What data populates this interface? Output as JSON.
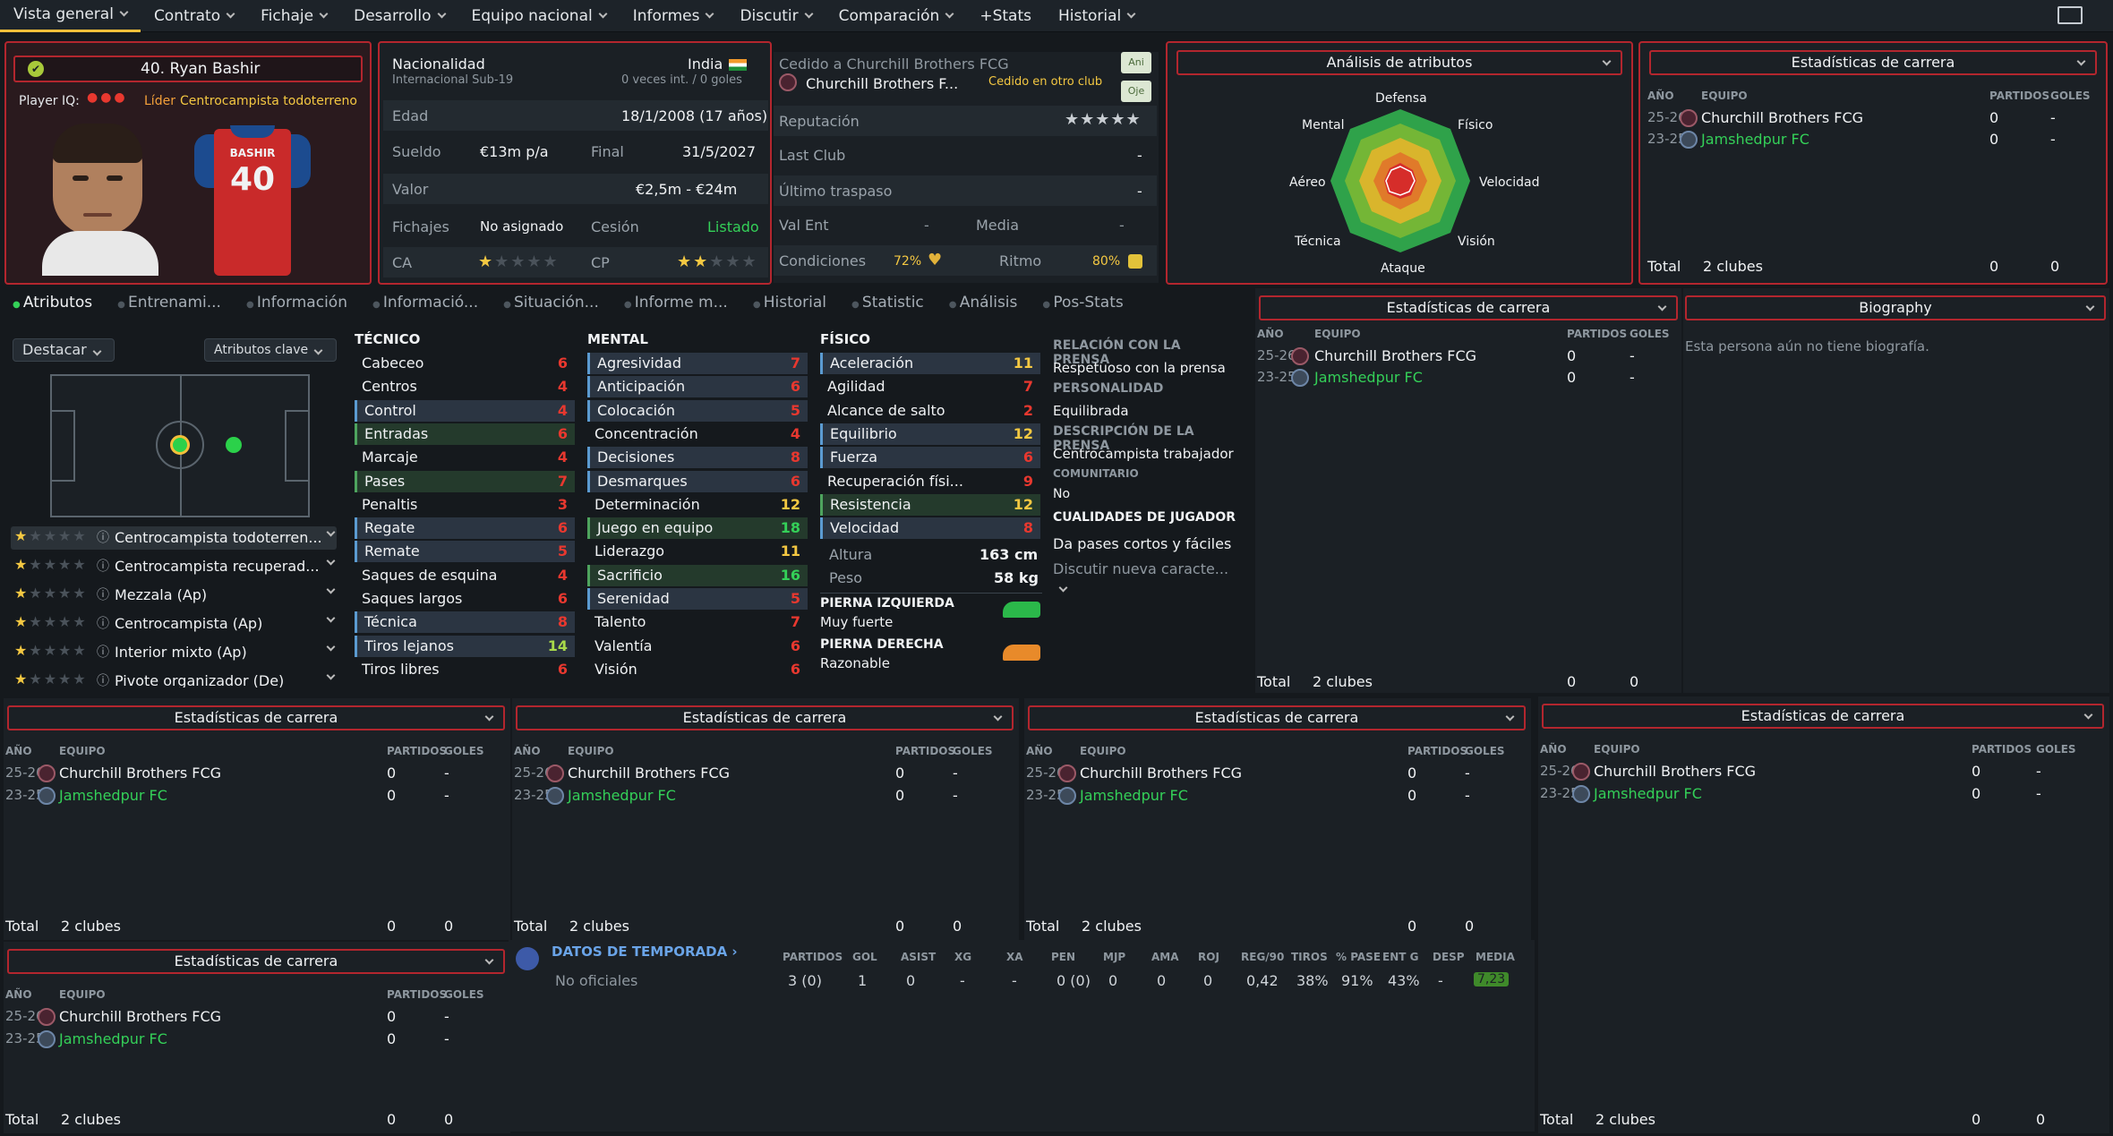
{
  "nav": [
    "Vista general",
    "Contrato",
    "Fichaje",
    "Desarrollo",
    "Equipo nacional",
    "Informes",
    "Discutir",
    "Comparación",
    "+Stats",
    "Historial"
  ],
  "player": {
    "name": "40. Ryan Bashir",
    "player_iq_label": "Player IQ:",
    "leader": "Líder",
    "role": "Centrocampista todoterreno",
    "shirt_name": "BASHIR",
    "shirt_number": "40"
  },
  "info": {
    "nationality_label": "Nacionalidad",
    "nationality": "India",
    "intl_label": "Internacional Sub-19",
    "intl_value": "0 veces int. / 0 goles",
    "age_label": "Edad",
    "age": "18/1/2008 (17 años)",
    "salary_label": "Sueldo",
    "salary": "€13m p/a",
    "end_label": "Final",
    "end": "31/5/2027",
    "value_label": "Valor",
    "value": "€2,5m - €24m",
    "transfers_label": "Fichajes",
    "transfers": "No asignado",
    "loan_label": "Cesión",
    "loan": "Listado",
    "ca_label": "CA",
    "cp_label": "CP",
    "loaned_to": "Cedido a Churchill Brothers FCG",
    "club": "Churchill Brothers F...",
    "loaned_status": "Cedido en otro club",
    "btn_ani": "Ani",
    "btn_oje": "Oje",
    "reputation_label": "Reputación",
    "last_club_label": "Last Club",
    "last_club": "-",
    "last_transfer_label": "Último traspaso",
    "last_transfer": "-",
    "val_ent_label": "Val Ent",
    "val_ent": "-",
    "media_label": "Media",
    "media": "-",
    "conditions_label": "Condiciones",
    "conditions": "72%",
    "ritmo_label": "Ritmo",
    "ritmo": "80%"
  },
  "radar": {
    "title": "Análisis de atributos",
    "labels": [
      "Defensa",
      "Físico",
      "Velocidad",
      "Visión",
      "Ataque",
      "Técnica",
      "Aéreo",
      "Mental"
    ]
  },
  "tabs": [
    "Atributos",
    "Entrenami...",
    "Información",
    "Informació...",
    "Situación...",
    "Informe m...",
    "Historial",
    "Statistic",
    "Análisis",
    "Pos-Stats"
  ],
  "pitch": {
    "highlight": "Destacar",
    "key_attrs": "Atributos clave"
  },
  "roles": [
    "Centrocampista todoterren...",
    "Centrocampista recuperad...",
    "Mezzala (Ap)",
    "Centrocampista (Ap)",
    "Interior mixto (Ap)",
    "Pivote organizador (De)"
  ],
  "tecnico": {
    "title": "TÉCNICO",
    "items": [
      [
        "Cabeceo",
        "6"
      ],
      [
        "Centros",
        "4"
      ],
      [
        "Control",
        "4"
      ],
      [
        "Entradas",
        "6"
      ],
      [
        "Marcaje",
        "4"
      ],
      [
        "Pases",
        "7"
      ],
      [
        "Penaltis",
        "3"
      ],
      [
        "Regate",
        "6"
      ],
      [
        "Remate",
        "5"
      ],
      [
        "Saques de esquina",
        "4"
      ],
      [
        "Saques largos",
        "6"
      ],
      [
        "Técnica",
        "8"
      ],
      [
        "Tiros lejanos",
        "14"
      ],
      [
        "Tiros libres",
        "6"
      ]
    ]
  },
  "mental": {
    "title": "MENTAL",
    "items": [
      [
        "Agresividad",
        "7"
      ],
      [
        "Anticipación",
        "6"
      ],
      [
        "Colocación",
        "5"
      ],
      [
        "Concentración",
        "4"
      ],
      [
        "Decisiones",
        "8"
      ],
      [
        "Desmarques",
        "6"
      ],
      [
        "Determinación",
        "12"
      ],
      [
        "Juego en equipo",
        "18"
      ],
      [
        "Liderazgo",
        "11"
      ],
      [
        "Sacrificio",
        "16"
      ],
      [
        "Serenidad",
        "5"
      ],
      [
        "Talento",
        "7"
      ],
      [
        "Valentía",
        "6"
      ],
      [
        "Visión",
        "6"
      ]
    ]
  },
  "fisico": {
    "title": "FÍSICO",
    "items": [
      [
        "Aceleración",
        "11"
      ],
      [
        "Agilidad",
        "7"
      ],
      [
        "Alcance de salto",
        "2"
      ],
      [
        "Equilibrio",
        "12"
      ],
      [
        "Fuerza",
        "6"
      ],
      [
        "Recuperación físi...",
        "9"
      ],
      [
        "Resistencia",
        "12"
      ],
      [
        "Velocidad",
        "8"
      ]
    ],
    "height_label": "Altura",
    "height": "163 cm",
    "weight_label": "Peso",
    "weight": "58 kg",
    "left_foot_label": "PIERNA IZQUIERDA",
    "left_foot": "Muy fuerte",
    "right_foot_label": "PIERNA DERECHA",
    "right_foot": "Razonable"
  },
  "press": {
    "rel_label": "RELACIÓN CON LA PRENSA",
    "rel": "Respetuoso con la prensa",
    "pers_label": "PERSONALIDAD",
    "pers": "Equilibrada",
    "desc_label": "DESCRIPCIÓN DE LA PRENSA",
    "desc": "Centrocampista trabajador",
    "com_label": "COMUNITARIO",
    "com": "No",
    "q_label": "CUALIDADES DE JUGADOR",
    "q": "Da pases cortos y fáciles",
    "discover": "Discutir nueva caracte..."
  },
  "career": {
    "title": "Estadísticas de carrera",
    "col_year": "AÑO",
    "col_team": "EQUIPO",
    "col_matches": "PARTIDOS",
    "col_goals": "GOLES",
    "rows": [
      {
        "year": "25-26",
        "team": "Churchill Brothers FCG",
        "matches": "0",
        "goals": "-"
      },
      {
        "year": "23-25",
        "team": "Jamshedpur FC",
        "matches": "0",
        "goals": "-"
      }
    ],
    "total_label": "Total",
    "total_clubs": "2 clubes",
    "total_matches": "0",
    "total_goals": "0"
  },
  "bio": {
    "title": "Biography",
    "text": "Esta persona aún no tiene biografía."
  },
  "season": {
    "title": "DATOS DE TEMPORADA",
    "cols": [
      "PARTIDOS",
      "GOL",
      "ASIST",
      "XG",
      "XA",
      "PEN",
      "MJP",
      "AMA",
      "ROJ",
      "REG/90",
      "TIROS",
      "% PASE",
      "ENT G",
      "DESP",
      "MEDIA"
    ],
    "row_label": "No oficiales",
    "values": [
      "3 (0)",
      "1",
      "0",
      "-",
      "-",
      "0 (0)",
      "0",
      "0",
      "0",
      "0,42",
      "38%",
      "91%",
      "43%",
      "-",
      "7,23"
    ]
  }
}
